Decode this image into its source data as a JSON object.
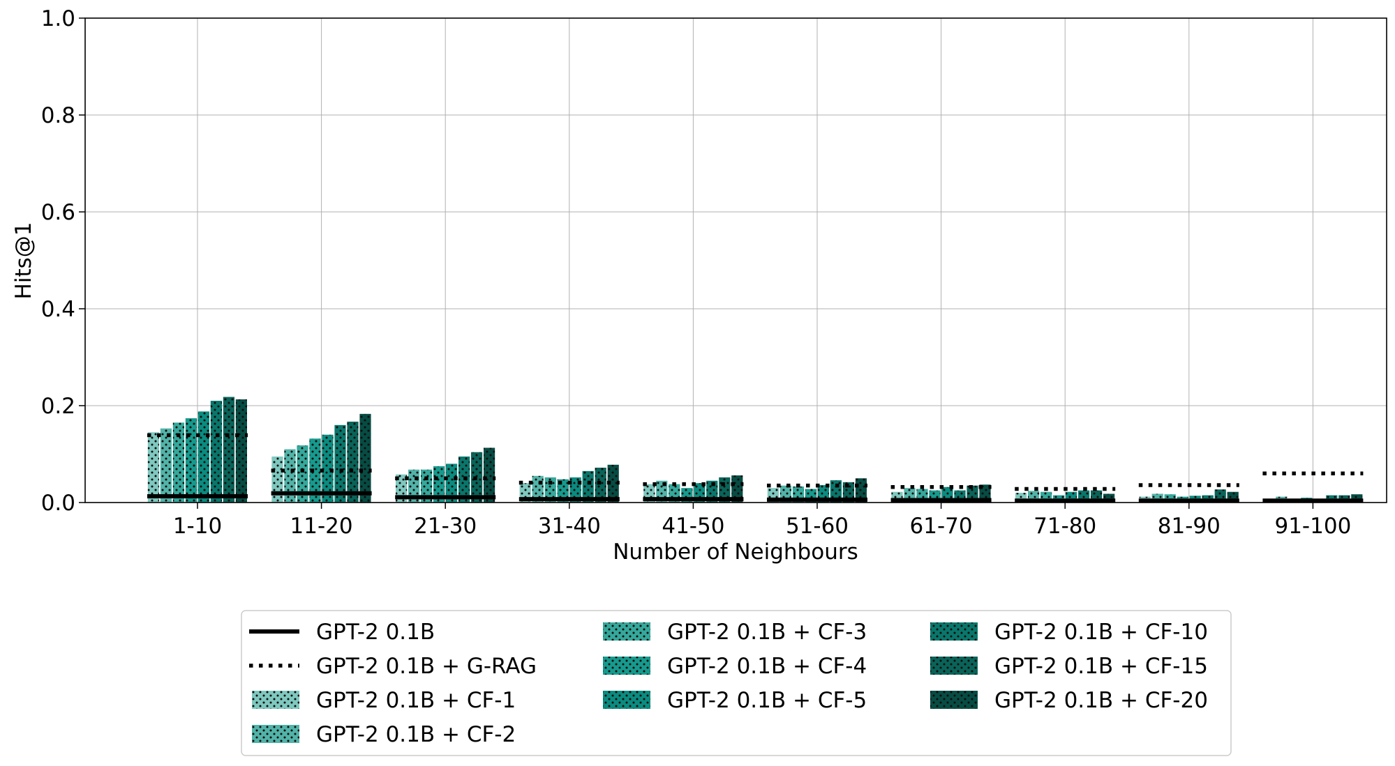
{
  "chart_data": {
    "type": "bar",
    "xlabel": "Number of Neighbours",
    "ylabel": "Hits@1",
    "ylim": [
      0,
      1.0
    ],
    "yticks": [
      "0.0",
      "0.2",
      "0.4",
      "0.6",
      "0.8",
      "1.0"
    ],
    "grid": true,
    "legend_position": "bottom-center",
    "categories": [
      "1-10",
      "11-20",
      "21-30",
      "31-40",
      "41-50",
      "51-60",
      "61-70",
      "71-80",
      "81-90",
      "91-100"
    ],
    "baseline_lines": [
      {
        "name": "GPT-2 0.1B",
        "style": "solid",
        "color": "#000000",
        "values": [
          0.013,
          0.019,
          0.011,
          0.007,
          0.007,
          0.006,
          0.005,
          0.004,
          0.004,
          0.004
        ]
      },
      {
        "name": "GPT-2 0.1B + G-RAG",
        "style": "dotted",
        "color": "#000000",
        "values": [
          0.139,
          0.066,
          0.05,
          0.041,
          0.038,
          0.035,
          0.032,
          0.028,
          0.036,
          0.06
        ]
      }
    ],
    "series": [
      {
        "name": "GPT-2 0.1B + CF-1",
        "color": "#7fc8bf",
        "values": [
          0.145,
          0.095,
          0.058,
          0.04,
          0.038,
          0.03,
          0.022,
          0.02,
          0.012,
          0.006
        ]
      },
      {
        "name": "GPT-2 0.1B + CF-2",
        "color": "#52b3a8",
        "values": [
          0.153,
          0.11,
          0.068,
          0.055,
          0.045,
          0.035,
          0.03,
          0.024,
          0.018,
          0.012
        ]
      },
      {
        "name": "GPT-2 0.1B + CF-3",
        "color": "#35a89b",
        "values": [
          0.165,
          0.118,
          0.068,
          0.052,
          0.038,
          0.033,
          0.028,
          0.022,
          0.017,
          0.008
        ]
      },
      {
        "name": "GPT-2 0.1B + CF-4",
        "color": "#179a8d",
        "values": [
          0.174,
          0.132,
          0.075,
          0.048,
          0.03,
          0.028,
          0.025,
          0.015,
          0.012,
          0.01
        ]
      },
      {
        "name": "GPT-2 0.1B + CF-5",
        "color": "#0b8b7f",
        "values": [
          0.188,
          0.14,
          0.08,
          0.052,
          0.04,
          0.036,
          0.032,
          0.022,
          0.014,
          0.007
        ]
      },
      {
        "name": "GPT-2 0.1B + CF-10",
        "color": "#0a766b",
        "values": [
          0.21,
          0.16,
          0.095,
          0.065,
          0.045,
          0.046,
          0.025,
          0.025,
          0.015,
          0.015
        ]
      },
      {
        "name": "GPT-2 0.1B + CF-15",
        "color": "#0a6358",
        "values": [
          0.218,
          0.167,
          0.104,
          0.072,
          0.052,
          0.042,
          0.035,
          0.025,
          0.027,
          0.015
        ]
      },
      {
        "name": "GPT-2 0.1B + CF-20",
        "color": "#074c43",
        "values": [
          0.213,
          0.183,
          0.113,
          0.078,
          0.056,
          0.05,
          0.037,
          0.018,
          0.022,
          0.017
        ]
      }
    ]
  }
}
